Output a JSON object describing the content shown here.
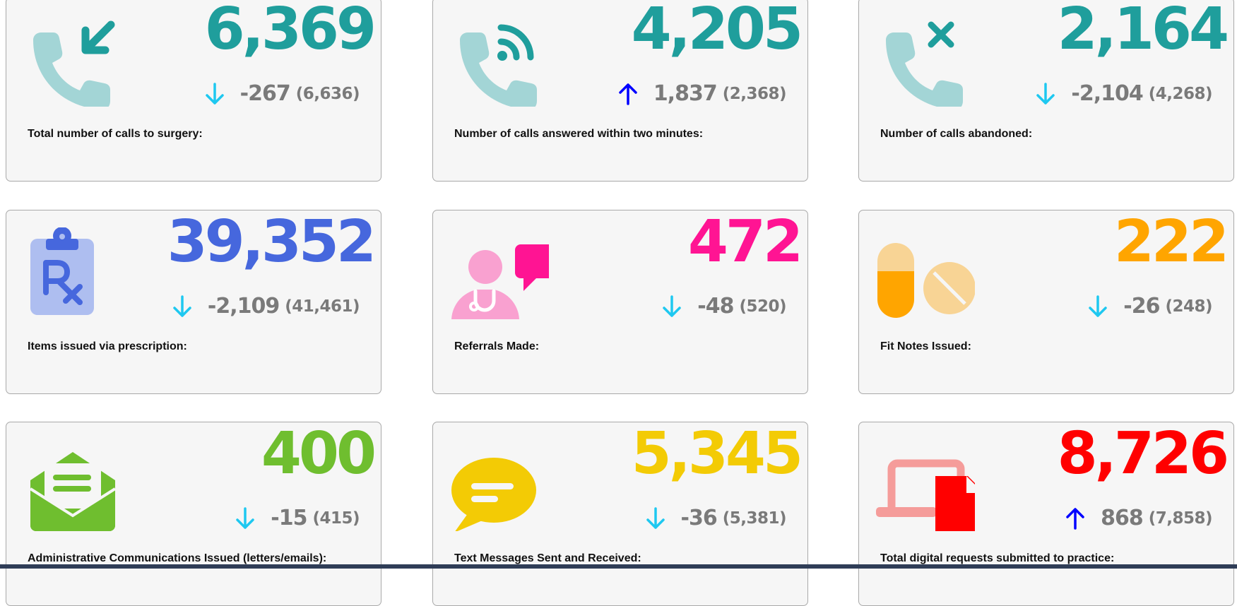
{
  "colors": {
    "teal": "#1f9e9c",
    "teal_light": "#a3d5d6",
    "blue": "#4667dd",
    "blue_light": "#aebef0",
    "pink": "#ff1493",
    "pink_light": "#f9a1d0",
    "orange": "#ffa500",
    "orange_light": "#f8d495",
    "green": "#6fbe2f",
    "yellow": "#f3cb05",
    "red": "#ff0000",
    "red_light": "#f59c9a",
    "arrow_down": "#1ec8f0",
    "arrow_up": "#0000ff",
    "change_text": "#7a7a7a"
  },
  "cards": [
    {
      "id": "total-calls",
      "value": "6,369",
      "change": "-267",
      "previous": "(6,636)",
      "trend": "down",
      "label": "Total number of calls to surgery:",
      "icon": "phone-incoming-icon"
    },
    {
      "id": "calls-answered",
      "value": "4,205",
      "change": "1,837",
      "previous": "(2,368)",
      "trend": "up",
      "label": "Number of calls answered within two minutes:",
      "icon": "phone-signal-icon"
    },
    {
      "id": "calls-abandoned",
      "value": "2,164",
      "change": "-2,104",
      "previous": "(4,268)",
      "trend": "down",
      "label": "Number of calls abandoned:",
      "icon": "phone-cross-icon"
    },
    {
      "id": "prescriptions",
      "value": "39,352",
      "change": "-2,109",
      "previous": "(41,461)",
      "trend": "down",
      "label": "Items issued via prescription:",
      "icon": "prescription-clipboard-icon"
    },
    {
      "id": "referrals",
      "value": "472",
      "change": "-48",
      "previous": "(520)",
      "trend": "down",
      "label": "Referrals Made:",
      "icon": "doctor-chat-icon"
    },
    {
      "id": "fit-notes",
      "value": "222",
      "change": "-26",
      "previous": "(248)",
      "trend": "down",
      "label": "Fit Notes Issued:",
      "icon": "pills-icon"
    },
    {
      "id": "admin-comms",
      "value": "400",
      "change": "-15",
      "previous": "(415)",
      "trend": "down",
      "label": "Administrative Communications Issued (letters/emails):",
      "icon": "open-envelope-icon"
    },
    {
      "id": "text-messages",
      "value": "5,345",
      "change": "-36",
      "previous": "(5,381)",
      "trend": "down",
      "label": "Text Messages Sent and Received:",
      "icon": "speech-bubble-icon"
    },
    {
      "id": "digital-requests",
      "value": "8,726",
      "change": "868",
      "previous": "(7,858)",
      "trend": "up",
      "label": "Total digital requests submitted to practice:",
      "icon": "laptop-document-icon"
    }
  ]
}
